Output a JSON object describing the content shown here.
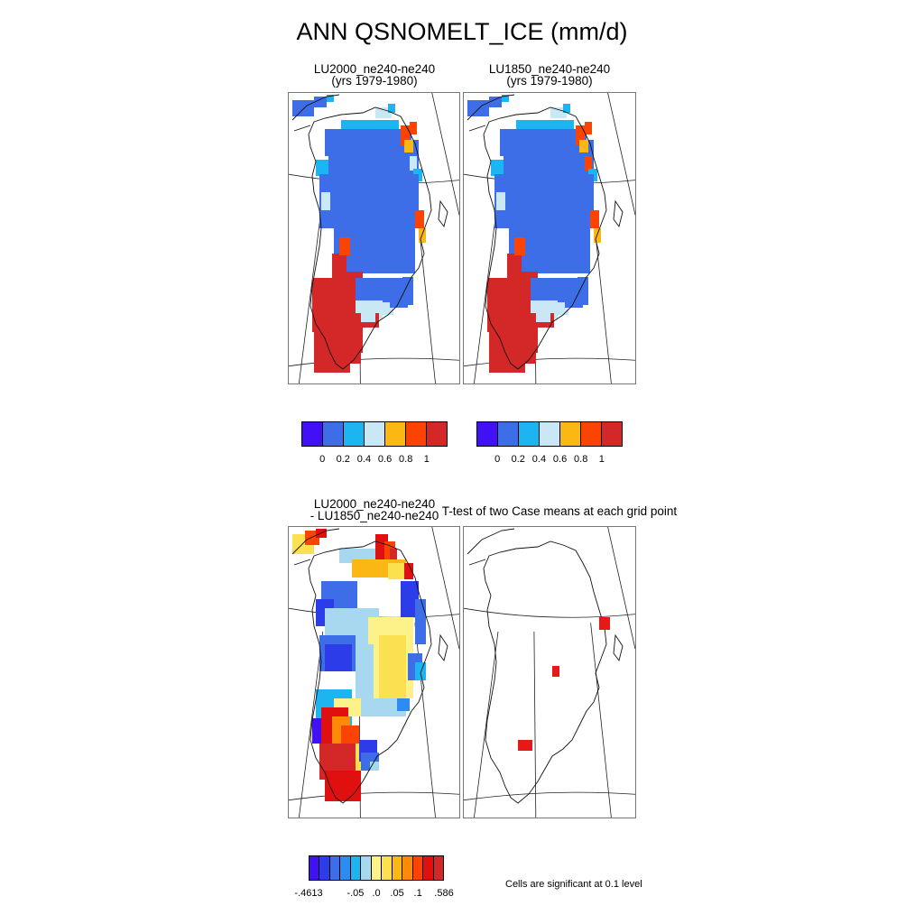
{
  "title": "ANN QSNOMELT_ICE (mm/d)",
  "panels": {
    "p1": {
      "line1": "LU2000_ne240-ne240",
      "line2": "(yrs 1979-1980)"
    },
    "p2": {
      "line1": "LU1850_ne240-ne240",
      "line2": "(yrs 1979-1980)"
    },
    "p3": {
      "line1": "LU2000_ne240-ne240",
      "line2": "- LU1850_ne240-ne240"
    },
    "p4": {
      "line1": "T-test of two Case means at each grid point"
    }
  },
  "colorbar_main": {
    "colors": [
      "#4210f4",
      "#3d6ee8",
      "#1cb5f2",
      "#c9e7f5",
      "#fbb714",
      "#fb4404",
      "#d42828"
    ],
    "ticks": [
      "0",
      "0.2",
      "0.4",
      "0.6",
      "0.8",
      "1"
    ]
  },
  "colorbar_diff": {
    "colors": [
      "#4210f4",
      "#2b3ce8",
      "#3d6ee8",
      "#2b8cf2",
      "#1cb5f2",
      "#a8d8f0",
      "#fdf28a",
      "#fbe050",
      "#fbb714",
      "#fb8a08",
      "#fb4404",
      "#e01010",
      "#d42828"
    ],
    "ticks": [
      "-.4613",
      "-.05",
      ".0",
      ".05",
      ".1",
      ".586"
    ]
  },
  "significance_note": "Cells are significant at 0.1 level",
  "significance_color": "#e61919"
}
